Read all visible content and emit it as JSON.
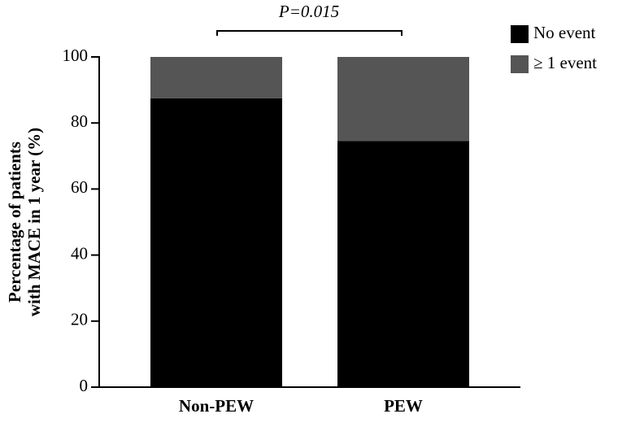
{
  "chart_data": {
    "type": "bar",
    "stacked": true,
    "y_label": [
      "Percentage of patients",
      "with MACE in 1 year (%)"
    ],
    "annotation": "P=0.015",
    "categories": [
      "Non-PEW",
      "PEW"
    ],
    "series": [
      {
        "name": "No event",
        "color": "#000000",
        "values": [
          87.5,
          74.5
        ]
      },
      {
        "name": "≥ 1 event",
        "color": "#555555",
        "values": [
          12.5,
          25.5
        ]
      }
    ],
    "ylim": [
      0,
      100
    ],
    "yticks": [
      0,
      20,
      40,
      60,
      80,
      100
    ],
    "legend": "top-right"
  }
}
